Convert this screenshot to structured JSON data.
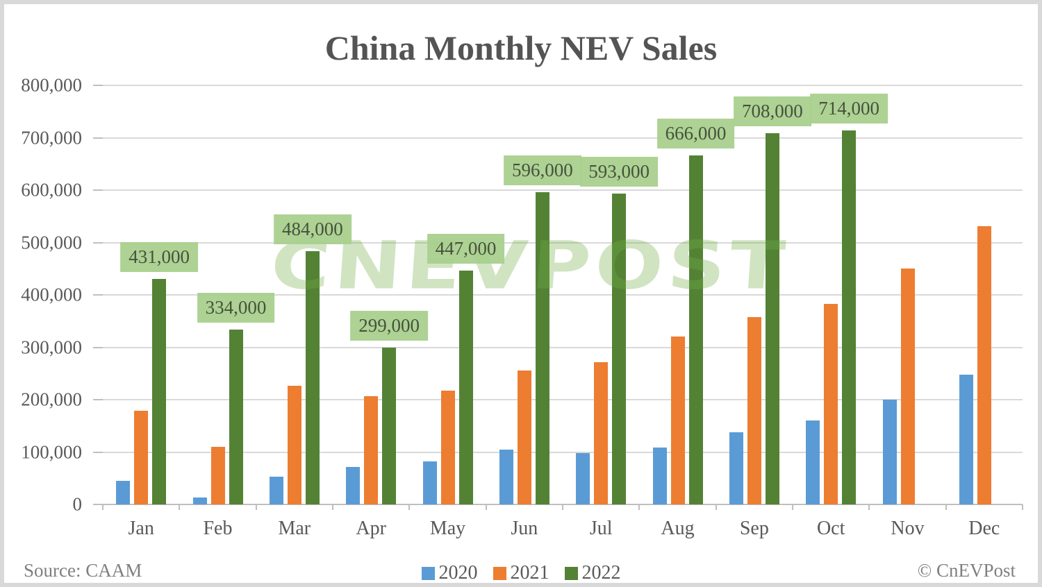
{
  "title": "China Monthly NEV Sales",
  "watermark_text": "CNEVPOST",
  "footer": {
    "source_label": "Source: CAAM",
    "credit_label": "© CnEVPost"
  },
  "legend": {
    "position": "bottom-center",
    "items": [
      "2020",
      "2021",
      "2022"
    ]
  },
  "colors": {
    "series_2020": "#5B9BD5",
    "series_2021": "#ED7D31",
    "series_2022": "#548235",
    "label_badge_bg": "#A9D08E",
    "label_badge_text": "#46523C",
    "gridline": "#D9D9D9",
    "axis": "#BFBFBF",
    "text": "#595959",
    "footer_text": "#7F7F7F"
  },
  "chart_data": {
    "type": "bar",
    "title": "China Monthly NEV Sales",
    "categories": [
      "Jan",
      "Feb",
      "Mar",
      "Apr",
      "May",
      "Jun",
      "Jul",
      "Aug",
      "Sep",
      "Oct",
      "Nov",
      "Dec"
    ],
    "series": [
      {
        "name": "2020",
        "color": "#5B9BD5",
        "values": [
          45000,
          13000,
          53000,
          72000,
          82000,
          104000,
          98000,
          109000,
          138000,
          160000,
          200000,
          248000
        ]
      },
      {
        "name": "2021",
        "color": "#ED7D31",
        "values": [
          179000,
          110000,
          226000,
          206000,
          217000,
          256000,
          271000,
          321000,
          357000,
          383000,
          450000,
          531000
        ]
      },
      {
        "name": "2022",
        "color": "#548235",
        "values": [
          431000,
          334000,
          484000,
          299000,
          447000,
          596000,
          593000,
          666000,
          708000,
          714000,
          null,
          null
        ],
        "data_labels": [
          "431,000",
          "334,000",
          "484,000",
          "299,000",
          "447,000",
          "596,000",
          "593,000",
          "666,000",
          "708,000",
          "714,000",
          null,
          null
        ]
      }
    ],
    "xlabel": "",
    "ylabel": "",
    "ylim": [
      0,
      800000
    ],
    "y_tick_labels": [
      "0",
      "100,000",
      "200,000",
      "300,000",
      "400,000",
      "500,000",
      "600,000",
      "700,000",
      "800,000"
    ],
    "grid": true,
    "legend_position": "bottom-center"
  }
}
